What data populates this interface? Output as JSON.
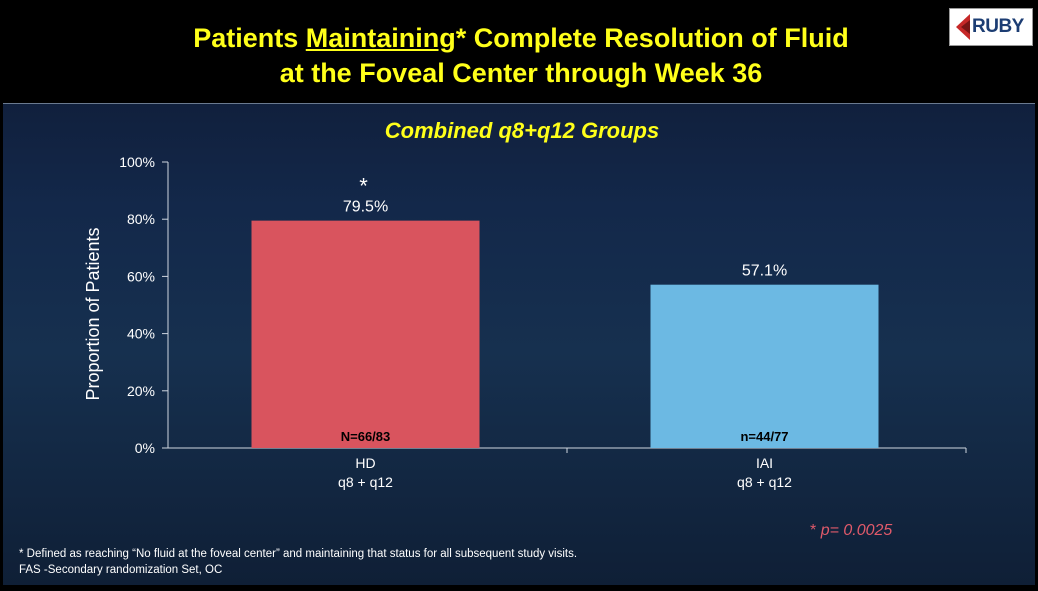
{
  "slide": {
    "title_pre": "Patients ",
    "title_underlined": "Maintaining",
    "title_post": "* Complete Resolution of Fluid",
    "title_line2": "at the Foveal Center through Week 36",
    "logo_text": "RUBY",
    "subtitle": "Combined q8+q12 Groups",
    "pvalue_marker": "*",
    "pvalue_text": "p= 0.0025",
    "footnote_line1": "* Defined as reaching “No fluid at the foveal center” and maintaining that status for all subsequent study visits.",
    "footnote_line2": "FAS -Secondary randomization Set, OC"
  },
  "chart_data": {
    "type": "bar",
    "title": "Combined q8+q12 Groups",
    "ylabel": "Proportion of Patients",
    "xlabel": "",
    "ylim": [
      0,
      100
    ],
    "yticks": [
      "0%",
      "20%",
      "40%",
      "60%",
      "80%",
      "100%"
    ],
    "categories": [
      {
        "line1": "HD",
        "line2": "q8 + q12"
      },
      {
        "line1": "IAI",
        "line2": "q8 + q12"
      }
    ],
    "values": [
      79.5,
      57.1
    ],
    "value_labels": [
      "79.5%",
      "57.1%"
    ],
    "n_labels": [
      "N=66/83",
      "n=44/77"
    ],
    "significance_marker": [
      "*",
      ""
    ],
    "colors": [
      "#d9545e",
      "#6cb9e3"
    ]
  }
}
